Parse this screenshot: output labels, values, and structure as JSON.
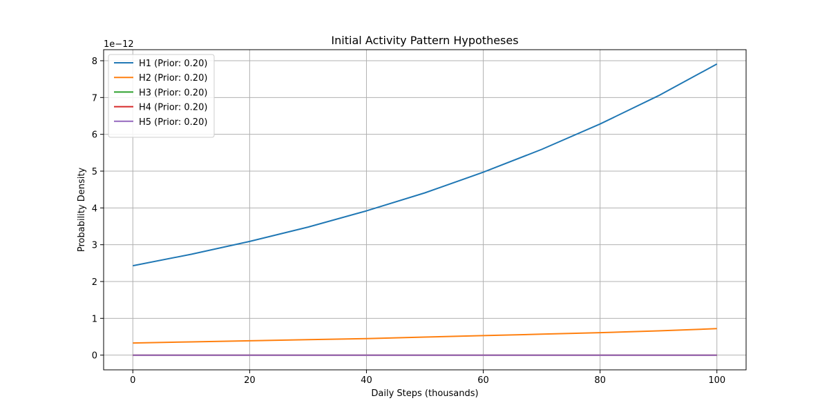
{
  "chart_data": {
    "type": "line",
    "title": "Initial Activity Pattern Hypotheses",
    "xlabel": "Daily Steps (thousands)",
    "ylabel": "Probability Density",
    "y_offset_label": "1e−12",
    "xlim": [
      -5,
      105
    ],
    "ylim": [
      -0.4,
      8.3
    ],
    "x_ticks": [
      0,
      20,
      40,
      60,
      80,
      100
    ],
    "y_ticks": [
      0,
      1,
      2,
      3,
      4,
      5,
      6,
      7,
      8
    ],
    "grid": true,
    "legend_position": "top-left",
    "x": [
      0,
      10,
      20,
      30,
      40,
      50,
      60,
      70,
      80,
      90,
      100
    ],
    "series": [
      {
        "name": "H1 (Prior: 0.20)",
        "color": "#1f77b4",
        "values": [
          2.43,
          2.74,
          3.09,
          3.48,
          3.92,
          4.41,
          4.97,
          5.59,
          6.28,
          7.05,
          7.91
        ]
      },
      {
        "name": "H2 (Prior: 0.20)",
        "color": "#ff7f0e",
        "values": [
          0.33,
          0.36,
          0.39,
          0.42,
          0.45,
          0.49,
          0.53,
          0.57,
          0.61,
          0.66,
          0.72
        ]
      },
      {
        "name": "H3 (Prior: 0.20)",
        "color": "#2ca02c",
        "values": [
          0.0,
          0.0,
          0.0,
          0.0,
          0.0,
          0.0,
          0.0,
          0.0,
          0.0,
          0.0,
          0.0
        ]
      },
      {
        "name": "H4 (Prior: 0.20)",
        "color": "#d62728",
        "values": [
          0.0,
          0.0,
          0.0,
          0.0,
          0.0,
          0.0,
          0.0,
          0.0,
          0.0,
          0.0,
          0.0
        ]
      },
      {
        "name": "H5 (Prior: 0.20)",
        "color": "#9467bd",
        "values": [
          0.0,
          0.0,
          0.0,
          0.0,
          0.0,
          0.0,
          0.0,
          0.0,
          0.0,
          0.0,
          0.0
        ]
      }
    ]
  }
}
